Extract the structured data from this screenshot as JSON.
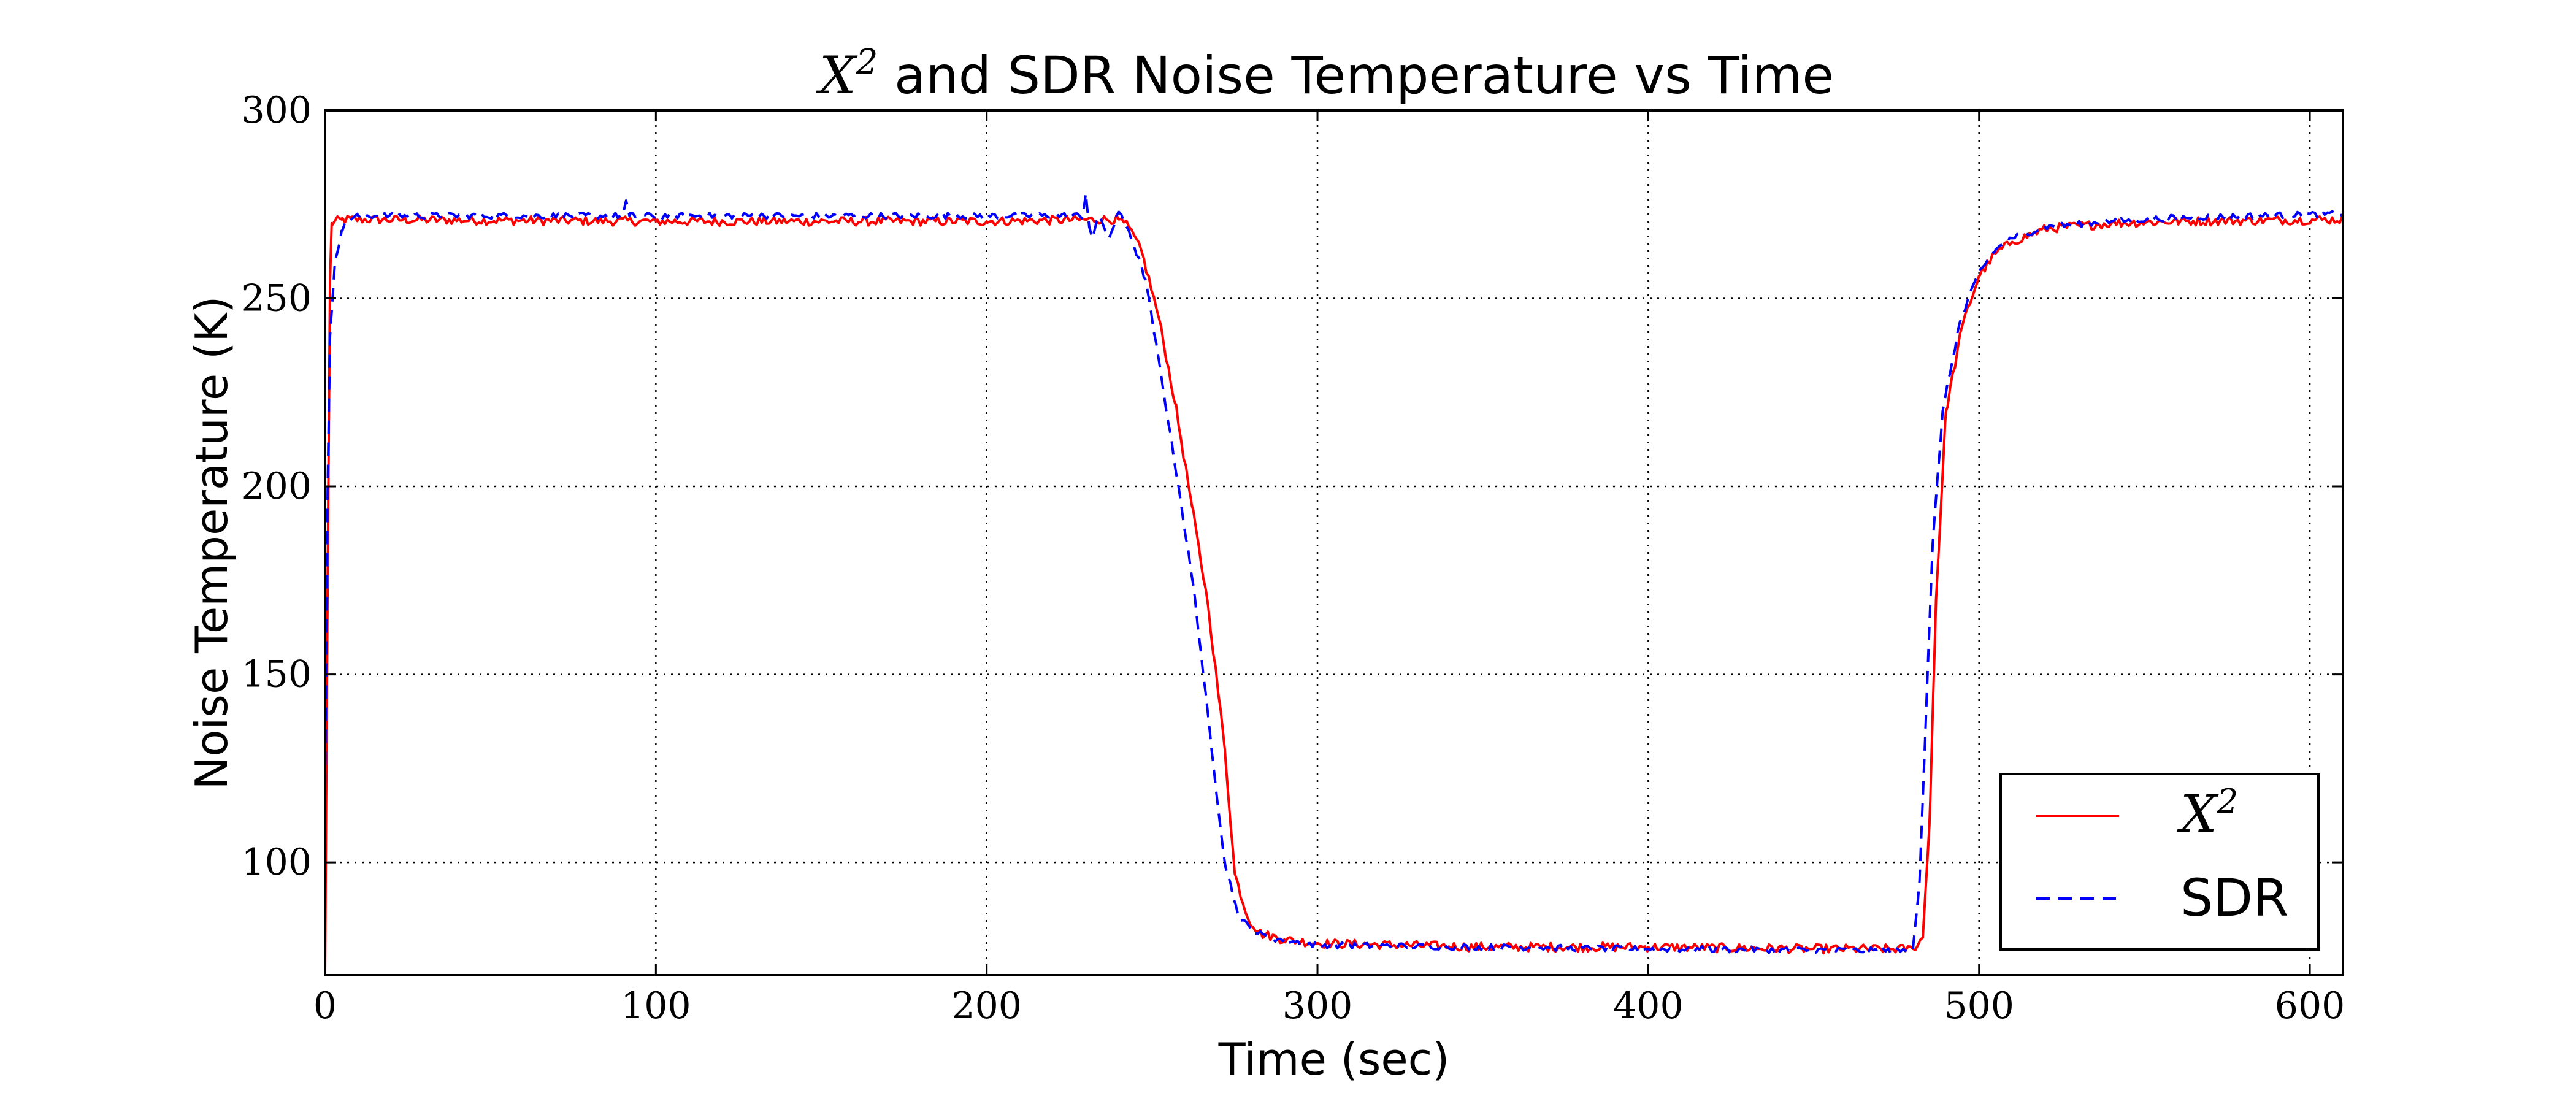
{
  "chart_data": {
    "type": "line",
    "title": {
      "math": "X",
      "sup": "2",
      "text": " and SDR Noise Temperature vs Time"
    },
    "xlabel": "Time (sec)",
    "ylabel": "Noise Temperature (K)",
    "xlim": [
      0,
      610
    ],
    "ylim": [
      70,
      300
    ],
    "xticks": [
      0,
      100,
      200,
      300,
      400,
      500,
      600
    ],
    "yticks": [
      100,
      150,
      200,
      250,
      300
    ],
    "xtick_labels": [
      "0",
      "100",
      "200",
      "300",
      "400",
      "500",
      "600"
    ],
    "ytick_labels": [
      "100",
      "150",
      "200",
      "250",
      "300"
    ],
    "grid": true,
    "legend_position": "bottom-right",
    "series": [
      {
        "name": "X",
        "name_sup": "2",
        "color": "#ff0000",
        "dash": "solid",
        "noise": 1.2,
        "points": [
          [
            0,
            70
          ],
          [
            0.5,
            140
          ],
          [
            1,
            200
          ],
          [
            1.5,
            255
          ],
          [
            2,
            270
          ],
          [
            5,
            271
          ],
          [
            100,
            270.5
          ],
          [
            200,
            270.5
          ],
          [
            235,
            271
          ],
          [
            240,
            271
          ],
          [
            243,
            269
          ],
          [
            247,
            262
          ],
          [
            252,
            245
          ],
          [
            257,
            222
          ],
          [
            262,
            195
          ],
          [
            267,
            168
          ],
          [
            272,
            130
          ],
          [
            275,
            97
          ],
          [
            279,
            85
          ],
          [
            283,
            81
          ],
          [
            290,
            79.5
          ],
          [
            300,
            78.5
          ],
          [
            350,
            77.5
          ],
          [
            400,
            77.5
          ],
          [
            450,
            77
          ],
          [
            480,
            77
          ],
          [
            483,
            80
          ],
          [
            485,
            110
          ],
          [
            487,
            170
          ],
          [
            490,
            220
          ],
          [
            495,
            243
          ],
          [
            500,
            256
          ],
          [
            505,
            262
          ],
          [
            510,
            265
          ],
          [
            520,
            268.5
          ],
          [
            540,
            270
          ],
          [
            560,
            270.5
          ],
          [
            610,
            271
          ]
        ]
      },
      {
        "name": "SDR",
        "color": "#0000ff",
        "dash": "dashed",
        "noise": 0.8,
        "points": [
          [
            0,
            120
          ],
          [
            0.8,
            200
          ],
          [
            1.5,
            240
          ],
          [
            3,
            260
          ],
          [
            5,
            268
          ],
          [
            7,
            271
          ],
          [
            10,
            272
          ],
          [
            90,
            272
          ],
          [
            91,
            276
          ],
          [
            92,
            272
          ],
          [
            229,
            272
          ],
          [
            230,
            278
          ],
          [
            231,
            269
          ],
          [
            232,
            266
          ],
          [
            234,
            272
          ],
          [
            237,
            266
          ],
          [
            240,
            273
          ],
          [
            243,
            268
          ],
          [
            248,
            255
          ],
          [
            253,
            228
          ],
          [
            258,
            200
          ],
          [
            263,
            170
          ],
          [
            268,
            130
          ],
          [
            272,
            100
          ],
          [
            276,
            86
          ],
          [
            280,
            82
          ],
          [
            285,
            80
          ],
          [
            300,
            78
          ],
          [
            400,
            77
          ],
          [
            478,
            76.5
          ],
          [
            480,
            77
          ],
          [
            482,
            95
          ],
          [
            484,
            140
          ],
          [
            486,
            185
          ],
          [
            489,
            220
          ],
          [
            494,
            243
          ],
          [
            500,
            257
          ],
          [
            505,
            263
          ],
          [
            510,
            266
          ],
          [
            520,
            269
          ],
          [
            540,
            270.5
          ],
          [
            560,
            271.5
          ],
          [
            610,
            272.5
          ]
        ]
      }
    ]
  }
}
